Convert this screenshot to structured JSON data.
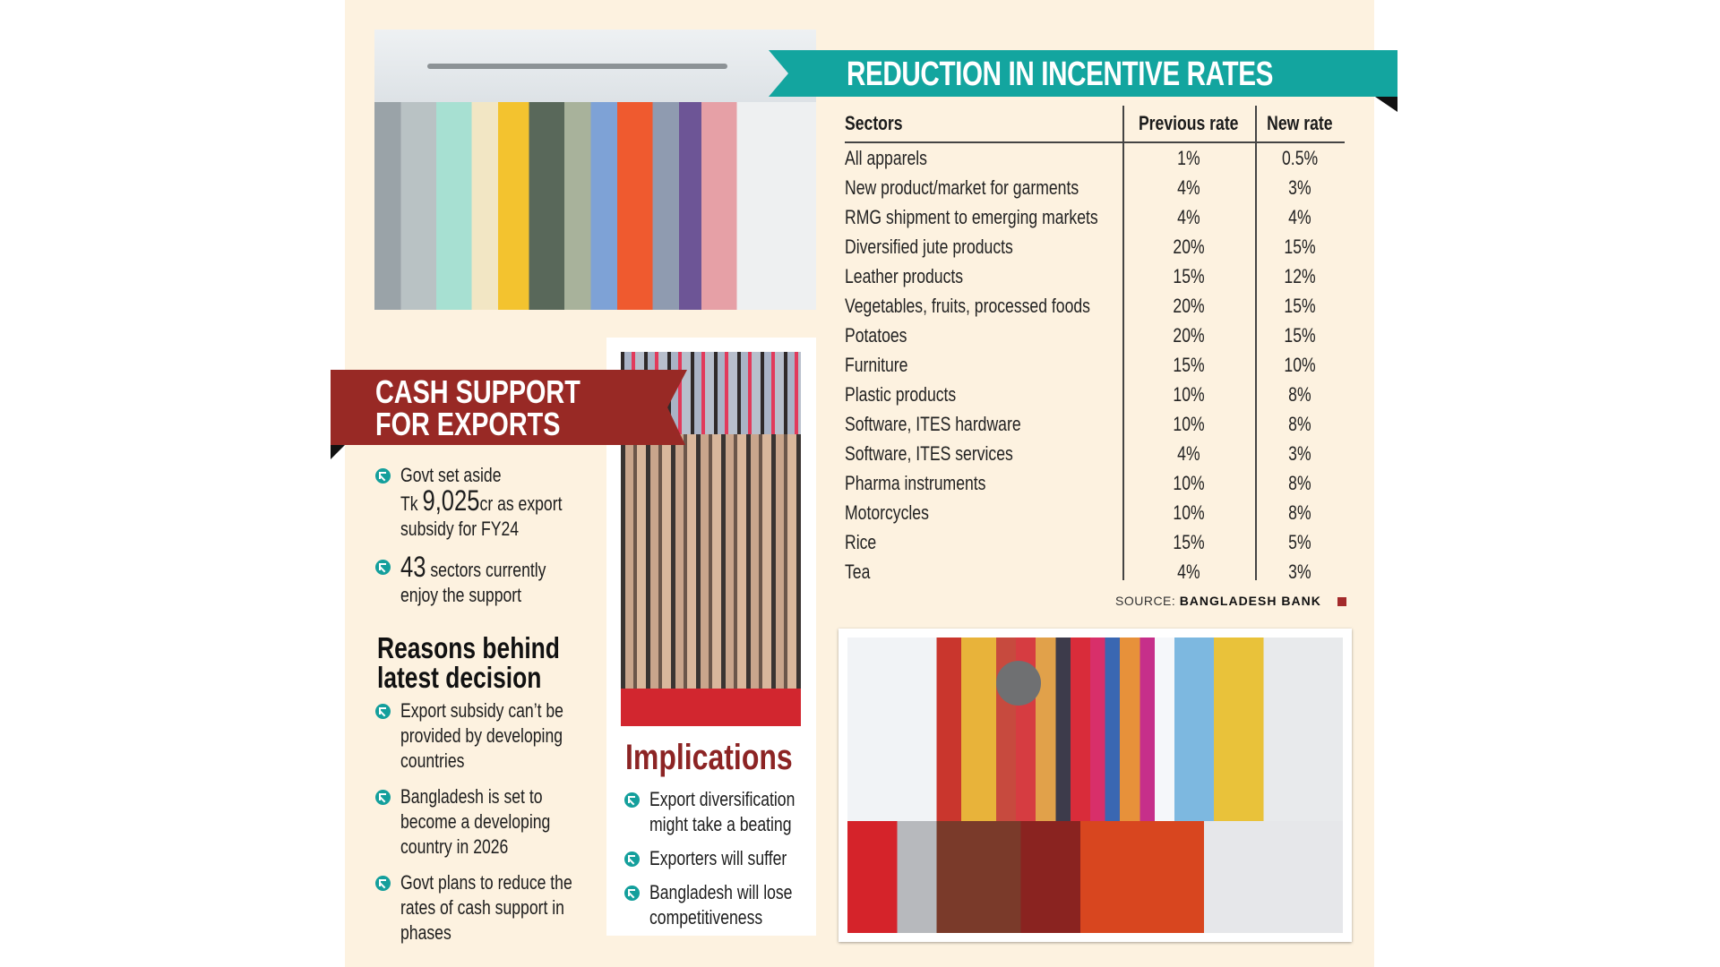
{
  "page": {
    "background": "#fdf2e0",
    "colors": {
      "teal": "#13a59f",
      "red_banner": "#982925",
      "implications_red": "#8c2424",
      "bullet_icon": "#149f9c"
    }
  },
  "images": {
    "top_left": "photo-clothes-on-rack",
    "middle": "photo-jute-bags",
    "bottom_right": "photo-leather-goods-fair"
  },
  "rates": {
    "title": "REDUCTION IN INCENTIVE RATES",
    "headers": [
      "Sectors",
      "Previous rate",
      "New rate"
    ],
    "rows": [
      {
        "sector": "All apparels",
        "previous": "1%",
        "new": "0.5%"
      },
      {
        "sector": "New product/market for garments",
        "previous": "4%",
        "new": "3%"
      },
      {
        "sector": "RMG shipment to emerging markets",
        "previous": "4%",
        "new": "4%"
      },
      {
        "sector": "Diversified jute products",
        "previous": "20%",
        "new": "15%"
      },
      {
        "sector": "Leather products",
        "previous": "15%",
        "new": "12%"
      },
      {
        "sector": "Vegetables, fruits, processed foods",
        "previous": "20%",
        "new": "15%"
      },
      {
        "sector": "Potatoes",
        "previous": "20%",
        "new": "15%"
      },
      {
        "sector": "Furniture",
        "previous": "15%",
        "new": "10%"
      },
      {
        "sector": "Plastic products",
        "previous": "10%",
        "new": "8%"
      },
      {
        "sector": "Software, ITES hardware",
        "previous": "10%",
        "new": "8%"
      },
      {
        "sector": "Software, ITES services",
        "previous": "4%",
        "new": "3%"
      },
      {
        "sector": "Pharma instruments",
        "previous": "10%",
        "new": "8%"
      },
      {
        "sector": "Motorcycles",
        "previous": "10%",
        "new": "8%"
      },
      {
        "sector": "Rice",
        "previous": "15%",
        "new": "5%"
      },
      {
        "sector": "Tea",
        "previous": "4%",
        "new": "3%"
      }
    ],
    "source_label": "SOURCE:",
    "source_name": "BANGLADESH BANK"
  },
  "cash_support": {
    "title_line1": "CASH SUPPORT",
    "title_line2": "FOR EXPORTS",
    "fact1": {
      "line1": "Govt set aside",
      "prefix": "Tk ",
      "amount": "9,025",
      "suffix": "cr as export",
      "line3": "subsidy for FY24"
    },
    "fact2": {
      "number": "43",
      "rest": " sectors currently",
      "line2": "enjoy the support"
    }
  },
  "reasons": {
    "heading_line1": "Reasons behind",
    "heading_line2": "latest decision",
    "items": [
      [
        "Export subsidy can’t be",
        "provided by developing",
        "countries"
      ],
      [
        "Bangladesh is set to",
        "become a developing",
        "country in 2026"
      ],
      [
        "Govt plans to reduce the",
        "rates of cash support in",
        "phases"
      ]
    ]
  },
  "implications": {
    "heading": "Implications",
    "items": [
      [
        "Export diversification",
        "might take a beating"
      ],
      [
        "Exporters will suffer"
      ],
      [
        "Bangladesh will lose",
        "competitiveness"
      ]
    ]
  }
}
